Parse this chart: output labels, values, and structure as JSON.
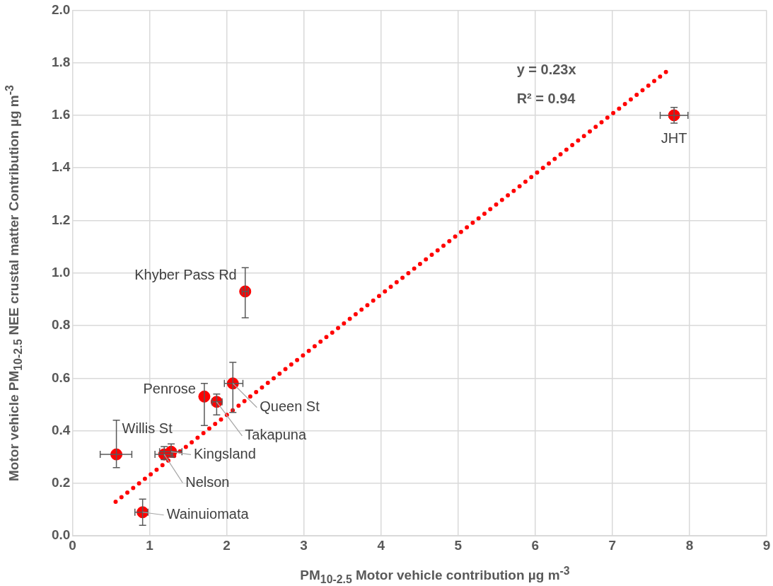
{
  "chart_data": {
    "type": "scatter",
    "xlabel": "PM$_{10-2.5}$ Motor vehicle contribution µg m$^{-3}$",
    "ylabel": "Motor vehicle PM$_{10-2.5}$ NEE crustal matter Contribution µg m$^{-3}$",
    "xlim": [
      0,
      9
    ],
    "xticks": [
      0,
      1,
      2,
      3,
      4,
      5,
      6,
      7,
      8,
      9
    ],
    "ylim": [
      0,
      2
    ],
    "yticks": [
      {
        "value": 0,
        "label": "0.0"
      },
      {
        "value": 0.2,
        "label": "0.2"
      },
      {
        "value": 0.4,
        "label": "0.4"
      },
      {
        "value": 0.6,
        "label": "0.6"
      },
      {
        "value": 0.8,
        "label": "0.8"
      },
      {
        "value": 1,
        "label": "1.0"
      },
      {
        "value": 1.2,
        "label": "1.2"
      },
      {
        "value": 1.4,
        "label": "1.4"
      },
      {
        "value": 1.6,
        "label": "1.6"
      },
      {
        "value": 1.8,
        "label": "1.8"
      },
      {
        "value": 2,
        "label": "2.0"
      }
    ],
    "grid": true,
    "legend": false,
    "marker": "circle",
    "series": [
      {
        "color": "#ff0000",
        "x": [
          7.8,
          2.24,
          2.08,
          1.71,
          1.87,
          0.57,
          1.28,
          1.19,
          0.91
        ],
        "values": [
          1.6,
          0.93,
          0.58,
          0.53,
          0.51,
          0.31,
          0.32,
          0.31,
          0.09
        ],
        "errors": [
          [
            1.57,
            1.63
          ],
          [
            0.83,
            1.02
          ],
          [
            0.47,
            0.66
          ],
          [
            0.42,
            0.58
          ],
          [
            0.46,
            0.54
          ],
          [
            0.26,
            0.44
          ],
          [
            0.3,
            0.35
          ],
          [
            0.29,
            0.34
          ],
          [
            0.04,
            0.14
          ]
        ],
        "xerrors": [
          [
            7.62,
            7.98
          ],
          [
            2.2,
            2.28
          ],
          [
            1.97,
            2.21
          ],
          null,
          [
            1.81,
            1.94
          ],
          [
            0.36,
            0.77
          ],
          [
            1.13,
            1.42
          ],
          [
            1.07,
            1.3
          ],
          [
            0.81,
            0.98
          ]
        ]
      },
      {
        "type": "line",
        "color": "#ff0000",
        "line_style": "dotted",
        "marker": "none",
        "x": [
          0.56,
          7.76
        ],
        "values": [
          0.13,
          1.78
        ]
      }
    ],
    "annotations": [
      "y = 0.23x",
      "R² = 0.94",
      {
        "text": "JHT",
        "x": 7.8,
        "y": 1.6
      },
      {
        "text": "Khyber Pass Rd",
        "x": 2.24,
        "y": 0.93
      },
      {
        "text": "Queen St",
        "x": 2.08,
        "y": 0.58
      },
      {
        "text": "Penrose",
        "x": 1.71,
        "y": 0.53
      },
      {
        "text": "Takapuna",
        "x": 1.87,
        "y": 0.51
      },
      {
        "text": "Willis St",
        "x": 0.57,
        "y": 0.31
      },
      {
        "text": "Kingsland",
        "x": 1.28,
        "y": 0.32
      },
      {
        "text": "Nelson",
        "x": 1.19,
        "y": 0.31
      },
      {
        "text": "Wainuiomata",
        "x": 0.91,
        "y": 0.09
      }
    ]
  }
}
